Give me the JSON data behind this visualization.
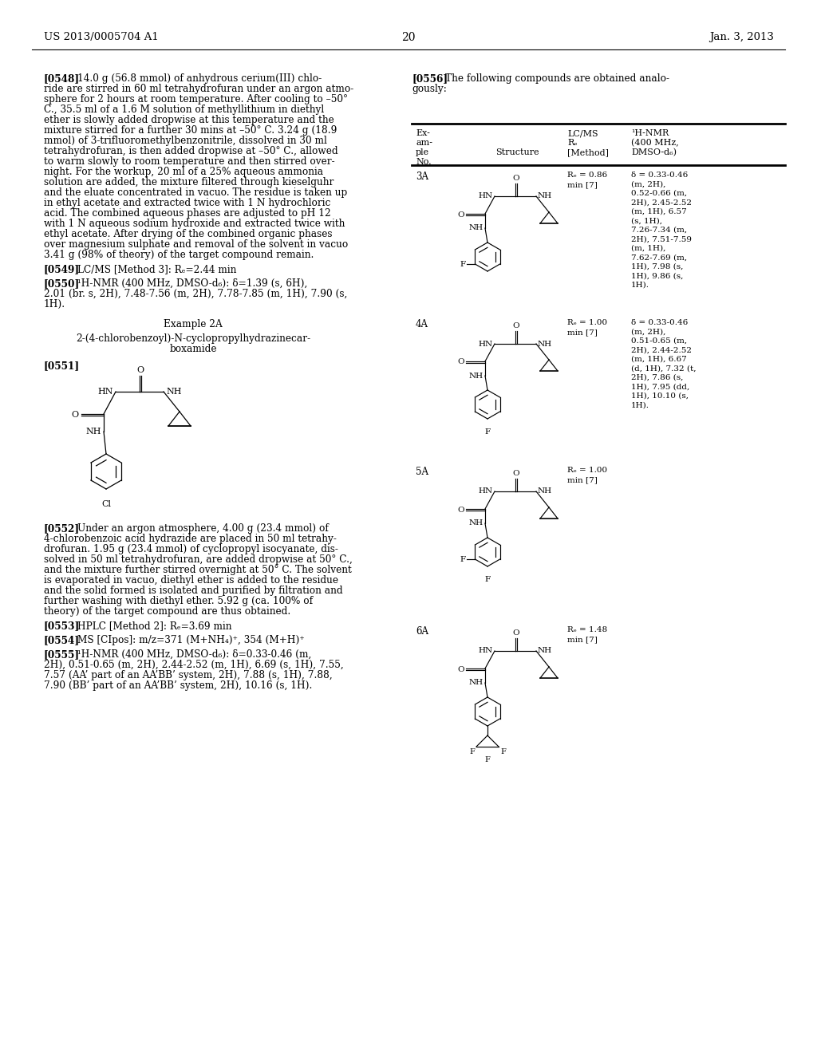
{
  "background_color": "#ffffff",
  "page_number": "20",
  "header_left": "US 2013/0005704 A1",
  "header_right": "Jan. 3, 2013",
  "fig_width": 10.24,
  "fig_height": 13.2,
  "dpi": 100
}
